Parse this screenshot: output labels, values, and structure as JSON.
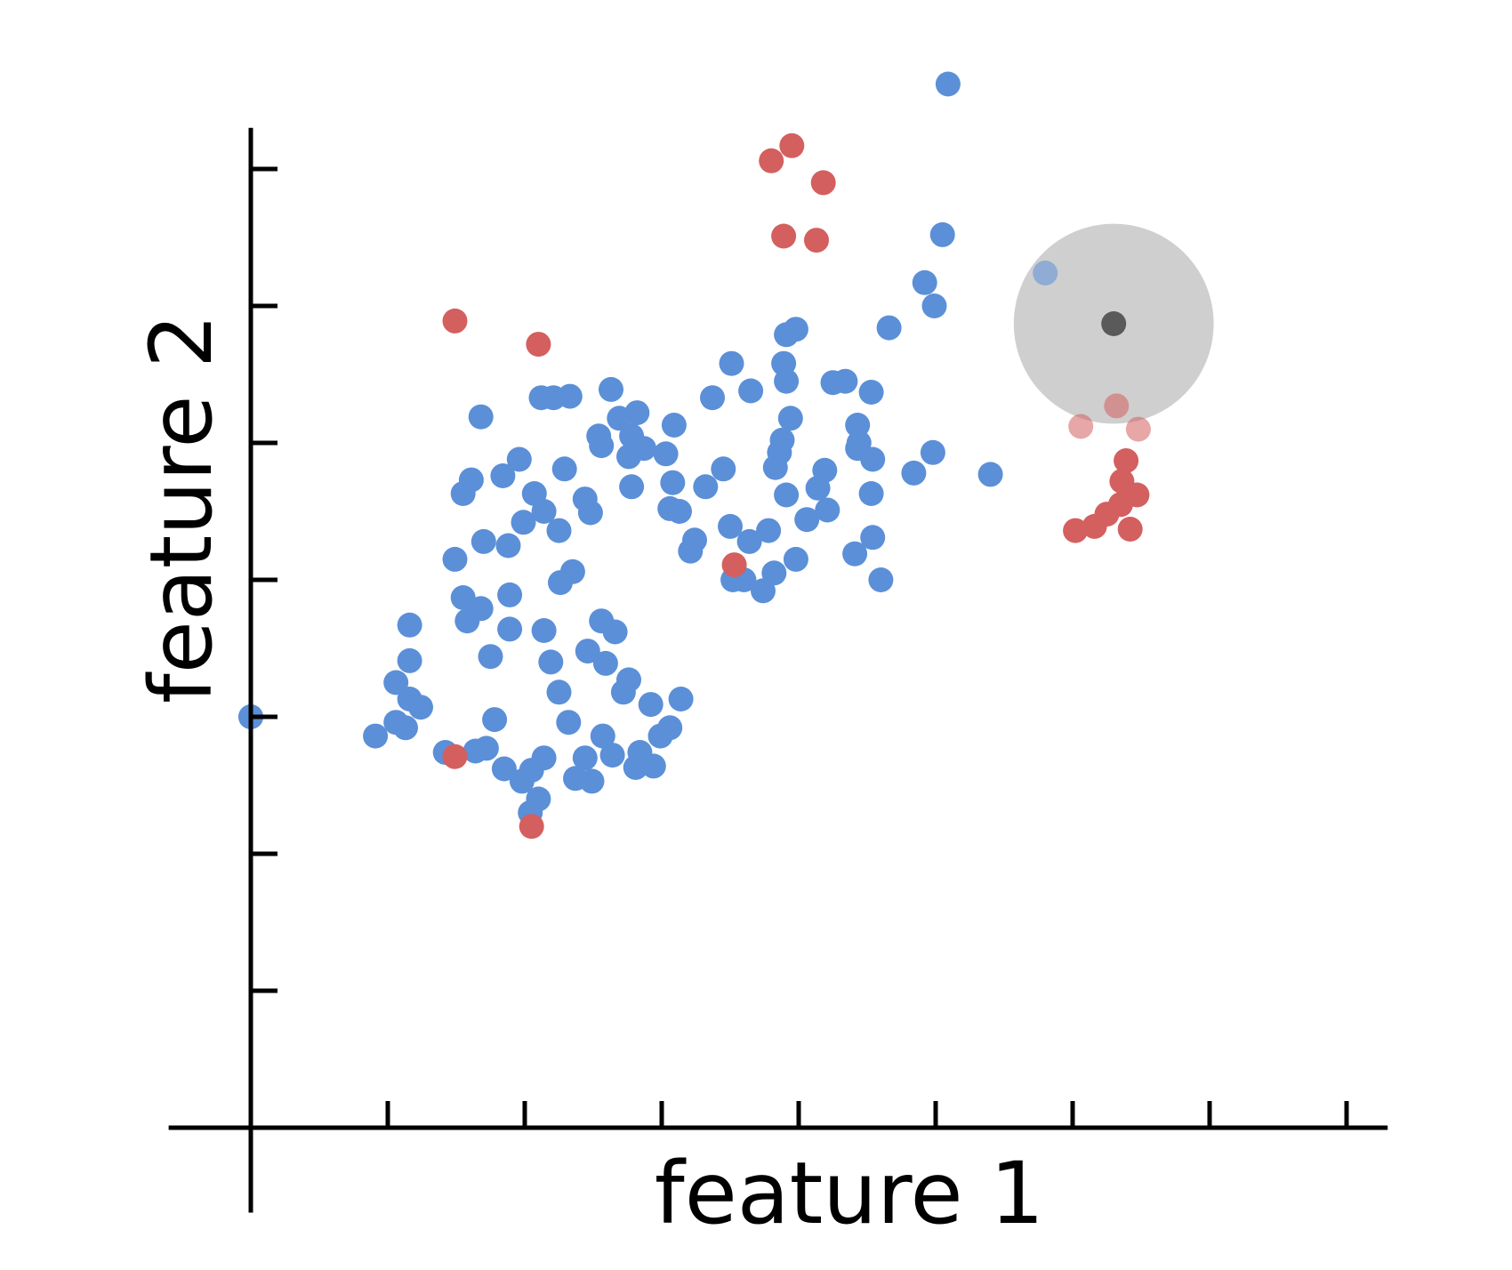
{
  "chart_data": {
    "type": "scatter",
    "xlabel": "feature 1",
    "ylabel": "feature 2",
    "xlim": [
      -0.67,
      8.33
    ],
    "ylim": [
      -0.67,
      7.33
    ],
    "grid": false,
    "legend": "none",
    "x_ticks": [
      0,
      1,
      2,
      3,
      4,
      5,
      6,
      7,
      8
    ],
    "y_ticks": [
      0,
      1,
      2,
      3,
      4,
      5,
      6,
      7
    ],
    "colors": {
      "class_a": "#5b8fd8",
      "class_b": "#d45f5f",
      "query": "#5a5a5a",
      "neighborhood": "#cfcfcf",
      "axis": "#000000"
    },
    "series": [
      {
        "class": "class_a",
        "points": [
          [
            5.09,
            7.62
          ],
          [
            5.05,
            6.52
          ],
          [
            4.92,
            6.17
          ],
          [
            4.99,
            6.0
          ],
          [
            4.66,
            5.84
          ],
          [
            3.91,
            5.79
          ],
          [
            3.98,
            5.83
          ],
          [
            3.89,
            5.58
          ],
          [
            3.51,
            5.58
          ],
          [
            3.91,
            5.45
          ],
          [
            3.94,
            5.18
          ],
          [
            3.88,
            5.02
          ],
          [
            3.86,
            4.93
          ],
          [
            3.83,
            4.82
          ],
          [
            3.65,
            5.38
          ],
          [
            3.37,
            5.33
          ],
          [
            4.25,
            5.44
          ],
          [
            4.34,
            5.45
          ],
          [
            4.53,
            5.37
          ],
          [
            4.43,
            5.13
          ],
          [
            4.44,
            5.0
          ],
          [
            4.54,
            4.88
          ],
          [
            4.14,
            4.67
          ],
          [
            4.19,
            4.8
          ],
          [
            4.43,
            4.96
          ],
          [
            4.98,
            4.93
          ],
          [
            4.84,
            4.78
          ],
          [
            4.53,
            4.63
          ],
          [
            4.21,
            4.51
          ],
          [
            5.4,
            4.77
          ],
          [
            4.54,
            4.31
          ],
          [
            4.41,
            4.19
          ],
          [
            4.06,
            4.44
          ],
          [
            3.78,
            4.36
          ],
          [
            3.98,
            4.15
          ],
          [
            3.82,
            4.05
          ],
          [
            3.64,
            4.28
          ],
          [
            3.74,
            3.92
          ],
          [
            3.52,
            4.0
          ],
          [
            3.91,
            4.62
          ],
          [
            3.32,
            4.68
          ],
          [
            3.5,
            4.39
          ],
          [
            3.06,
            4.52
          ],
          [
            3.13,
            4.5
          ],
          [
            3.21,
            4.21
          ],
          [
            3.24,
            4.29
          ],
          [
            3.03,
            4.92
          ],
          [
            2.78,
            5.05
          ],
          [
            2.78,
            4.68
          ],
          [
            2.54,
            5.05
          ],
          [
            2.82,
            5.22
          ],
          [
            2.87,
            4.96
          ],
          [
            2.76,
            4.9
          ],
          [
            2.63,
            5.39
          ],
          [
            2.56,
            4.98
          ],
          [
            2.44,
            4.59
          ],
          [
            3.09,
            5.13
          ],
          [
            3.08,
            4.71
          ],
          [
            2.48,
            4.49
          ],
          [
            2.69,
            5.18
          ],
          [
            2.33,
            5.34
          ],
          [
            2.21,
            5.33
          ],
          [
            2.29,
            4.81
          ],
          [
            2.12,
            5.33
          ],
          [
            2.14,
            4.5
          ],
          [
            1.96,
            4.88
          ],
          [
            1.68,
            5.19
          ],
          [
            1.84,
            4.76
          ],
          [
            2.07,
            4.63
          ],
          [
            1.55,
            4.63
          ],
          [
            1.61,
            4.73
          ],
          [
            1.99,
            4.42
          ],
          [
            1.88,
            4.25
          ],
          [
            1.7,
            4.28
          ],
          [
            1.49,
            4.15
          ],
          [
            2.35,
            4.06
          ],
          [
            1.55,
            3.87
          ],
          [
            2.26,
            3.98
          ],
          [
            1.68,
            3.79
          ],
          [
            1.89,
            3.64
          ],
          [
            2.14,
            3.63
          ],
          [
            2.56,
            3.7
          ],
          [
            2.66,
            3.62
          ],
          [
            2.46,
            3.48
          ],
          [
            2.19,
            3.4
          ],
          [
            2.59,
            3.39
          ],
          [
            1.16,
            3.67
          ],
          [
            1.16,
            3.41
          ],
          [
            1.16,
            3.13
          ],
          [
            1.75,
            3.44
          ],
          [
            1.24,
            3.07
          ],
          [
            1.06,
            3.25
          ],
          [
            1.06,
            2.96
          ],
          [
            1.13,
            2.92
          ],
          [
            1.78,
            2.98
          ],
          [
            2.25,
            3.18
          ],
          [
            2.72,
            3.18
          ],
          [
            2.76,
            3.27
          ],
          [
            2.92,
            3.09
          ],
          [
            3.14,
            3.13
          ],
          [
            3.06,
            2.92
          ],
          [
            1.64,
            2.75
          ],
          [
            1.72,
            2.77
          ],
          [
            0.91,
            2.86
          ],
          [
            1.42,
            2.74
          ],
          [
            2.32,
            2.96
          ],
          [
            2.57,
            2.86
          ],
          [
            2.84,
            2.74
          ],
          [
            2.94,
            2.64
          ],
          [
            2.99,
            2.86
          ],
          [
            1.85,
            2.62
          ],
          [
            1.98,
            2.53
          ],
          [
            2.05,
            2.61
          ],
          [
            2.14,
            2.7
          ],
          [
            2.44,
            2.7
          ],
          [
            2.49,
            2.53
          ],
          [
            2.04,
            2.3
          ],
          [
            2.1,
            2.4
          ],
          [
            2.37,
            2.55
          ],
          [
            2.64,
            2.72
          ],
          [
            2.81,
            2.63
          ],
          [
            1.58,
            3.7
          ],
          [
            1.89,
            3.89
          ],
          [
            2.25,
            4.36
          ],
          [
            3.45,
            4.81
          ],
          [
            3.6,
            4.0
          ],
          [
            4.6,
            4.0
          ],
          [
            0.0,
            3.0
          ],
          [
            0.0,
            3.0
          ]
        ]
      },
      {
        "class": "class_b",
        "points": [
          [
            3.95,
            7.17
          ],
          [
            3.8,
            7.06
          ],
          [
            4.18,
            6.9
          ],
          [
            3.89,
            6.51
          ],
          [
            4.13,
            6.48
          ],
          [
            1.49,
            5.89
          ],
          [
            2.1,
            5.72
          ],
          [
            3.53,
            4.11
          ],
          [
            1.49,
            2.71
          ],
          [
            2.05,
            2.2
          ],
          [
            6.39,
            4.87
          ],
          [
            6.36,
            4.72
          ],
          [
            6.47,
            4.62
          ],
          [
            6.25,
            4.48
          ],
          [
            6.16,
            4.39
          ],
          [
            6.35,
            4.55
          ],
          [
            6.02,
            4.36
          ],
          [
            6.42,
            4.37
          ],
          [
            6.42,
            5.58
          ],
          [
            6.52,
            5.44
          ],
          [
            6.08,
            5.43
          ]
        ]
      },
      {
        "class": "class_a_highlighted",
        "points": [
          [
            5.8,
            6.24
          ]
        ]
      },
      {
        "class": "class_b_highlighted",
        "points": [
          [
            6.32,
            5.27
          ],
          [
            6.06,
            5.12
          ],
          [
            6.48,
            5.1
          ]
        ]
      }
    ],
    "query_point": [
      6.3,
      5.87
    ],
    "neighborhood_radius": 0.73
  }
}
